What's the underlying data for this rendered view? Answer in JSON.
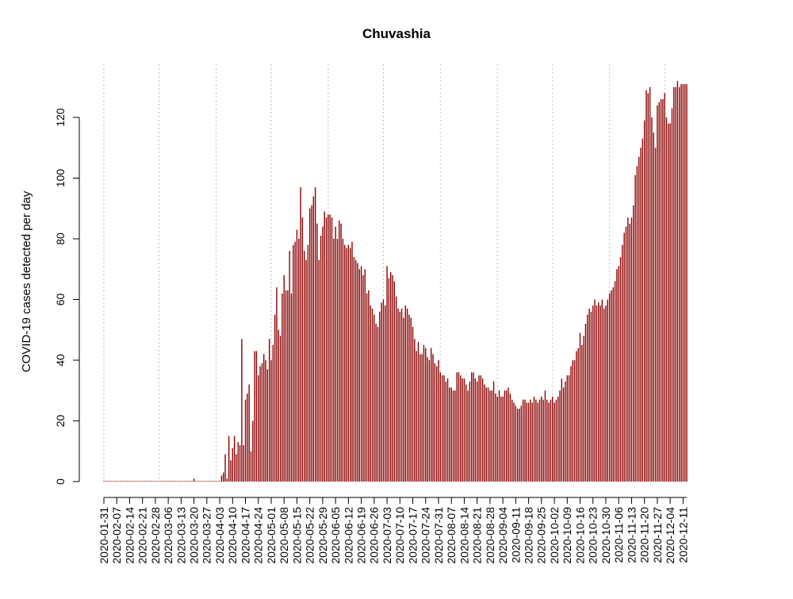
{
  "chart_data": {
    "type": "bar",
    "title": "Chuvashia",
    "xlabel": "",
    "ylabel": "COVID-19 cases detected per day",
    "x_start": "2020-01-31",
    "x_end": "2020-12-13",
    "x_tick_labels": [
      "2020-01-31",
      "2020-02-07",
      "2020-02-14",
      "2020-02-21",
      "2020-02-28",
      "2020-03-06",
      "2020-03-13",
      "2020-03-20",
      "2020-03-27",
      "2020-04-03",
      "2020-04-10",
      "2020-04-17",
      "2020-04-24",
      "2020-05-01",
      "2020-05-08",
      "2020-05-15",
      "2020-05-22",
      "2020-05-29",
      "2020-06-05",
      "2020-06-12",
      "2020-06-19",
      "2020-06-26",
      "2020-07-03",
      "2020-07-10",
      "2020-07-17",
      "2020-07-24",
      "2020-07-31",
      "2020-08-07",
      "2020-08-14",
      "2020-08-21",
      "2020-08-28",
      "2020-09-04",
      "2020-09-11",
      "2020-09-18",
      "2020-09-25",
      "2020-10-02",
      "2020-10-09",
      "2020-10-16",
      "2020-10-23",
      "2020-10-30",
      "2020-11-06",
      "2020-11-13",
      "2020-11-20",
      "2020-11-27",
      "2020-12-04",
      "2020-12-11"
    ],
    "y_ticks": [
      0,
      20,
      40,
      60,
      80,
      100,
      120
    ],
    "ylim": [
      0,
      135
    ],
    "vertical_gridlines_at": [
      "2020-01-31",
      "2020-03-01",
      "2020-04-01",
      "2020-05-01",
      "2020-06-01",
      "2020-07-01",
      "2020-08-01",
      "2020-09-01",
      "2020-10-01",
      "2020-11-01",
      "2020-12-01"
    ],
    "bar_color": "#8b0000",
    "grid_color": "#bebebe",
    "anchor_values": [
      [
        "2020-01-31",
        0
      ],
      [
        "2020-03-19",
        0
      ],
      [
        "2020-03-20",
        1
      ],
      [
        "2020-03-21",
        0
      ],
      [
        "2020-04-03",
        0
      ],
      [
        "2020-04-04",
        2
      ],
      [
        "2020-04-05",
        3
      ],
      [
        "2020-04-06",
        9
      ],
      [
        "2020-04-07",
        1
      ],
      [
        "2020-04-08",
        15
      ],
      [
        "2020-04-09",
        7
      ],
      [
        "2020-04-10",
        11
      ],
      [
        "2020-04-11",
        15
      ],
      [
        "2020-04-12",
        9
      ],
      [
        "2020-04-13",
        13
      ],
      [
        "2020-04-14",
        12
      ],
      [
        "2020-04-15",
        47
      ],
      [
        "2020-04-16",
        12
      ],
      [
        "2020-04-17",
        27
      ],
      [
        "2020-04-18",
        29
      ],
      [
        "2020-04-19",
        32
      ],
      [
        "2020-04-20",
        10
      ],
      [
        "2020-04-21",
        20
      ],
      [
        "2020-04-22",
        43
      ],
      [
        "2020-04-23",
        43
      ],
      [
        "2020-04-24",
        35
      ],
      [
        "2020-04-25",
        38
      ],
      [
        "2020-04-26",
        39
      ],
      [
        "2020-04-27",
        42
      ],
      [
        "2020-04-28",
        40
      ],
      [
        "2020-04-29",
        37
      ],
      [
        "2020-04-30",
        47
      ],
      [
        "2020-05-01",
        40
      ],
      [
        "2020-05-02",
        45
      ],
      [
        "2020-05-03",
        55
      ],
      [
        "2020-05-04",
        64
      ],
      [
        "2020-05-05",
        50
      ],
      [
        "2020-05-06",
        48
      ],
      [
        "2020-05-07",
        62
      ],
      [
        "2020-05-08",
        68
      ],
      [
        "2020-05-09",
        63
      ],
      [
        "2020-05-10",
        63
      ],
      [
        "2020-05-11",
        76
      ],
      [
        "2020-05-12",
        62
      ],
      [
        "2020-05-13",
        78
      ],
      [
        "2020-05-14",
        79
      ],
      [
        "2020-05-15",
        83
      ],
      [
        "2020-05-16",
        80
      ],
      [
        "2020-05-17",
        97
      ],
      [
        "2020-05-18",
        87
      ],
      [
        "2020-05-19",
        76
      ],
      [
        "2020-05-20",
        73
      ],
      [
        "2020-05-21",
        78
      ],
      [
        "2020-05-22",
        90
      ],
      [
        "2020-05-23",
        91
      ],
      [
        "2020-05-24",
        94
      ],
      [
        "2020-05-25",
        97
      ],
      [
        "2020-05-26",
        85
      ],
      [
        "2020-05-27",
        73
      ],
      [
        "2020-05-28",
        81
      ],
      [
        "2020-05-29",
        84
      ],
      [
        "2020-05-30",
        89
      ],
      [
        "2020-05-31",
        87
      ],
      [
        "2020-06-01",
        88
      ],
      [
        "2020-06-02",
        88
      ],
      [
        "2020-06-03",
        87
      ],
      [
        "2020-06-04",
        80
      ],
      [
        "2020-06-05",
        84
      ],
      [
        "2020-06-06",
        80
      ],
      [
        "2020-06-07",
        86
      ],
      [
        "2020-06-08",
        85
      ],
      [
        "2020-06-09",
        80
      ],
      [
        "2020-06-10",
        78
      ],
      [
        "2020-06-11",
        77
      ],
      [
        "2020-06-12",
        78
      ],
      [
        "2020-06-13",
        77
      ],
      [
        "2020-06-14",
        79
      ],
      [
        "2020-06-15",
        74
      ],
      [
        "2020-06-16",
        73
      ],
      [
        "2020-06-17",
        72
      ],
      [
        "2020-06-18",
        70
      ],
      [
        "2020-06-19",
        71
      ],
      [
        "2020-06-20",
        68
      ],
      [
        "2020-06-21",
        70
      ],
      [
        "2020-06-22",
        62
      ],
      [
        "2020-06-23",
        63
      ],
      [
        "2020-06-24",
        58
      ],
      [
        "2020-06-25",
        57
      ],
      [
        "2020-06-26",
        55
      ],
      [
        "2020-06-27",
        52
      ],
      [
        "2020-06-28",
        51
      ],
      [
        "2020-06-29",
        56
      ],
      [
        "2020-06-30",
        59
      ],
      [
        "2020-07-01",
        60
      ],
      [
        "2020-07-02",
        58
      ],
      [
        "2020-07-03",
        71
      ],
      [
        "2020-07-04",
        67
      ],
      [
        "2020-07-05",
        69
      ],
      [
        "2020-07-06",
        68
      ],
      [
        "2020-07-07",
        66
      ],
      [
        "2020-07-08",
        61
      ],
      [
        "2020-07-09",
        57
      ],
      [
        "2020-07-10",
        56
      ],
      [
        "2020-07-11",
        57
      ],
      [
        "2020-07-12",
        54
      ],
      [
        "2020-07-13",
        58
      ],
      [
        "2020-07-14",
        57
      ],
      [
        "2020-07-15",
        55
      ],
      [
        "2020-07-16",
        54
      ],
      [
        "2020-07-17",
        51
      ],
      [
        "2020-07-18",
        47
      ],
      [
        "2020-07-19",
        43
      ],
      [
        "2020-07-20",
        46
      ],
      [
        "2020-07-21",
        42
      ],
      [
        "2020-07-22",
        42
      ],
      [
        "2020-07-23",
        45
      ],
      [
        "2020-07-24",
        44
      ],
      [
        "2020-07-25",
        41
      ],
      [
        "2020-07-26",
        40
      ],
      [
        "2020-07-27",
        44
      ],
      [
        "2020-07-28",
        42
      ],
      [
        "2020-07-29",
        39
      ],
      [
        "2020-07-30",
        38
      ],
      [
        "2020-07-31",
        40
      ],
      [
        "2020-08-01",
        36
      ],
      [
        "2020-08-02",
        35
      ],
      [
        "2020-08-03",
        35
      ],
      [
        "2020-08-04",
        33
      ],
      [
        "2020-08-05",
        34
      ],
      [
        "2020-08-06",
        31
      ],
      [
        "2020-08-07",
        31
      ],
      [
        "2020-08-08",
        30
      ],
      [
        "2020-08-09",
        30
      ],
      [
        "2020-08-10",
        36
      ],
      [
        "2020-08-11",
        36
      ],
      [
        "2020-08-12",
        35
      ],
      [
        "2020-08-13",
        34
      ],
      [
        "2020-08-14",
        34
      ],
      [
        "2020-08-15",
        32
      ],
      [
        "2020-08-16",
        30
      ],
      [
        "2020-08-17",
        33
      ],
      [
        "2020-08-18",
        36
      ],
      [
        "2020-08-19",
        36
      ],
      [
        "2020-08-20",
        34
      ],
      [
        "2020-08-21",
        33
      ],
      [
        "2020-08-22",
        35
      ],
      [
        "2020-08-23",
        35
      ],
      [
        "2020-08-24",
        34
      ],
      [
        "2020-08-25",
        32
      ],
      [
        "2020-08-26",
        31
      ],
      [
        "2020-08-27",
        31
      ],
      [
        "2020-08-28",
        30
      ],
      [
        "2020-08-29",
        30
      ],
      [
        "2020-08-30",
        33
      ],
      [
        "2020-08-31",
        29
      ],
      [
        "2020-09-01",
        28
      ],
      [
        "2020-09-02",
        30
      ],
      [
        "2020-09-03",
        28
      ],
      [
        "2020-09-04",
        28
      ],
      [
        "2020-09-05",
        30
      ],
      [
        "2020-09-06",
        30
      ],
      [
        "2020-09-07",
        31
      ],
      [
        "2020-09-08",
        29
      ],
      [
        "2020-09-09",
        27
      ],
      [
        "2020-09-10",
        26
      ],
      [
        "2020-09-11",
        25
      ],
      [
        "2020-09-12",
        24
      ],
      [
        "2020-09-13",
        24
      ],
      [
        "2020-09-14",
        25
      ],
      [
        "2020-09-15",
        27
      ],
      [
        "2020-09-16",
        27
      ],
      [
        "2020-09-17",
        26
      ],
      [
        "2020-09-18",
        26
      ],
      [
        "2020-09-19",
        27
      ],
      [
        "2020-09-20",
        26
      ],
      [
        "2020-09-21",
        28
      ],
      [
        "2020-09-22",
        27
      ],
      [
        "2020-09-23",
        26
      ],
      [
        "2020-09-24",
        27
      ],
      [
        "2020-09-25",
        28
      ],
      [
        "2020-09-26",
        27
      ],
      [
        "2020-09-27",
        30
      ],
      [
        "2020-09-28",
        27
      ],
      [
        "2020-09-29",
        26
      ],
      [
        "2020-09-30",
        27
      ],
      [
        "2020-10-01",
        28
      ],
      [
        "2020-10-02",
        26
      ],
      [
        "2020-10-03",
        27
      ],
      [
        "2020-10-04",
        28
      ],
      [
        "2020-10-05",
        30
      ],
      [
        "2020-10-06",
        34
      ],
      [
        "2020-10-07",
        31
      ],
      [
        "2020-10-08",
        33
      ],
      [
        "2020-10-09",
        35
      ],
      [
        "2020-10-10",
        35
      ],
      [
        "2020-10-11",
        38
      ],
      [
        "2020-10-12",
        40
      ],
      [
        "2020-10-13",
        40
      ],
      [
        "2020-10-14",
        43
      ],
      [
        "2020-10-15",
        44
      ],
      [
        "2020-10-16",
        49
      ],
      [
        "2020-10-17",
        45
      ],
      [
        "2020-10-18",
        48
      ],
      [
        "2020-10-19",
        52
      ],
      [
        "2020-10-20",
        55
      ],
      [
        "2020-10-21",
        57
      ],
      [
        "2020-10-22",
        56
      ],
      [
        "2020-10-23",
        58
      ],
      [
        "2020-10-24",
        60
      ],
      [
        "2020-10-25",
        58
      ],
      [
        "2020-10-26",
        59
      ],
      [
        "2020-10-27",
        58
      ],
      [
        "2020-10-28",
        60
      ],
      [
        "2020-10-29",
        57
      ],
      [
        "2020-10-30",
        58
      ],
      [
        "2020-10-31",
        60
      ],
      [
        "2020-11-01",
        62
      ],
      [
        "2020-11-02",
        63
      ],
      [
        "2020-11-03",
        64
      ],
      [
        "2020-11-04",
        66
      ],
      [
        "2020-11-05",
        70
      ],
      [
        "2020-11-06",
        71
      ],
      [
        "2020-11-07",
        74
      ],
      [
        "2020-11-08",
        78
      ],
      [
        "2020-11-09",
        82
      ],
      [
        "2020-11-10",
        84
      ],
      [
        "2020-11-11",
        87
      ],
      [
        "2020-11-12",
        85
      ],
      [
        "2020-11-13",
        87
      ],
      [
        "2020-11-14",
        91
      ],
      [
        "2020-11-15",
        101
      ],
      [
        "2020-11-16",
        104
      ],
      [
        "2020-11-17",
        107
      ],
      [
        "2020-11-18",
        110
      ],
      [
        "2020-11-19",
        113
      ],
      [
        "2020-11-20",
        119
      ],
      [
        "2020-11-21",
        129
      ],
      [
        "2020-11-22",
        128
      ],
      [
        "2020-11-23",
        130
      ],
      [
        "2020-11-24",
        120
      ],
      [
        "2020-11-25",
        115
      ],
      [
        "2020-11-26",
        110
      ],
      [
        "2020-11-27",
        124
      ],
      [
        "2020-11-28",
        125
      ],
      [
        "2020-11-29",
        126
      ],
      [
        "2020-11-30",
        126
      ],
      [
        "2020-12-01",
        128
      ],
      [
        "2020-12-02",
        120
      ],
      [
        "2020-12-03",
        118
      ],
      [
        "2020-12-04",
        118
      ],
      [
        "2020-12-05",
        123
      ],
      [
        "2020-12-06",
        130
      ],
      [
        "2020-12-07",
        130
      ],
      [
        "2020-12-08",
        132
      ],
      [
        "2020-12-09",
        130
      ],
      [
        "2020-12-10",
        131
      ],
      [
        "2020-12-13",
        131
      ]
    ]
  }
}
